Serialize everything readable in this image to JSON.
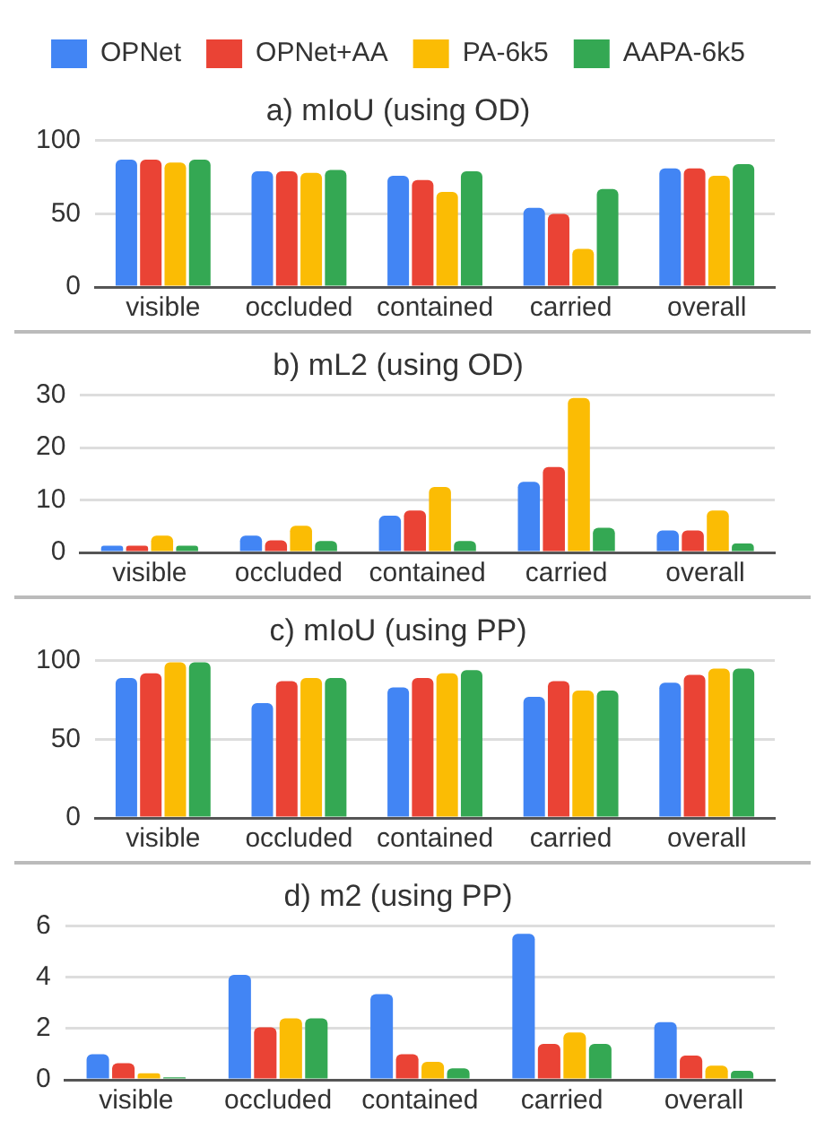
{
  "chart_data": [
    {
      "type": "bar",
      "title": "a) mIoU (using OD)",
      "categories": [
        "visible",
        "occluded",
        "contained",
        "carried",
        "overall"
      ],
      "legend": "top",
      "grid": "y",
      "ylim": [
        0,
        100
      ],
      "yticks": [
        0,
        50,
        100
      ],
      "series": [
        {
          "name": "OPNet",
          "color": "#4285f4",
          "values": [
            87,
            79,
            76,
            54,
            81
          ]
        },
        {
          "name": "OPNet+AA",
          "color": "#ea4335",
          "values": [
            87,
            79,
            73,
            50,
            81
          ]
        },
        {
          "name": "PA-6k5",
          "color": "#fbbc04",
          "values": [
            85,
            78,
            65,
            26,
            76
          ]
        },
        {
          "name": "AAPA-6k5",
          "color": "#34a853",
          "values": [
            87,
            80,
            79,
            67,
            84
          ]
        }
      ]
    },
    {
      "type": "bar",
      "title": "b) mL2 (using OD)",
      "categories": [
        "visible",
        "occluded",
        "contained",
        "carried",
        "overall"
      ],
      "grid": "y",
      "ylim": [
        0,
        30
      ],
      "yticks": [
        0,
        10,
        20,
        30
      ],
      "series": [
        {
          "color": "#4285f4",
          "values": [
            1.3,
            3.2,
            7,
            13.5,
            4.2
          ]
        },
        {
          "color": "#ea4335",
          "values": [
            1.3,
            2.3,
            8,
            16.3,
            4.2
          ]
        },
        {
          "color": "#fbbc04",
          "values": [
            3.2,
            5.1,
            12.5,
            29.5,
            8
          ]
        },
        {
          "color": "#34a853",
          "values": [
            1.3,
            2.2,
            2.2,
            4.7,
            1.7
          ]
        }
      ]
    },
    {
      "type": "bar",
      "title": "c) mIoU (using PP)",
      "categories": [
        "visible",
        "occluded",
        "contained",
        "carried",
        "overall"
      ],
      "grid": "y",
      "ylim": [
        0,
        100
      ],
      "yticks": [
        0,
        50,
        100
      ],
      "series": [
        {
          "color": "#4285f4",
          "values": [
            89,
            73,
            83,
            77,
            86
          ]
        },
        {
          "color": "#ea4335",
          "values": [
            92,
            87,
            89,
            87,
            91
          ]
        },
        {
          "color": "#fbbc04",
          "values": [
            99,
            89,
            92,
            81,
            95
          ]
        },
        {
          "color": "#34a853",
          "values": [
            99,
            89,
            94,
            81,
            95
          ]
        }
      ]
    },
    {
      "type": "bar",
      "title": "d) m2 (using PP)",
      "categories": [
        "visible",
        "occluded",
        "contained",
        "carried",
        "overall"
      ],
      "grid": "y",
      "ylim": [
        0,
        6
      ],
      "yticks": [
        0,
        2,
        4,
        6
      ],
      "series": [
        {
          "color": "#4285f4",
          "values": [
            1.0,
            4.1,
            3.35,
            5.7,
            2.25
          ]
        },
        {
          "color": "#ea4335",
          "values": [
            0.65,
            2.05,
            1.0,
            1.4,
            0.95
          ]
        },
        {
          "color": "#fbbc04",
          "values": [
            0.25,
            2.4,
            0.7,
            1.85,
            0.55
          ]
        },
        {
          "color": "#34a853",
          "values": [
            0.1,
            2.4,
            0.45,
            1.4,
            0.35
          ]
        }
      ]
    }
  ]
}
